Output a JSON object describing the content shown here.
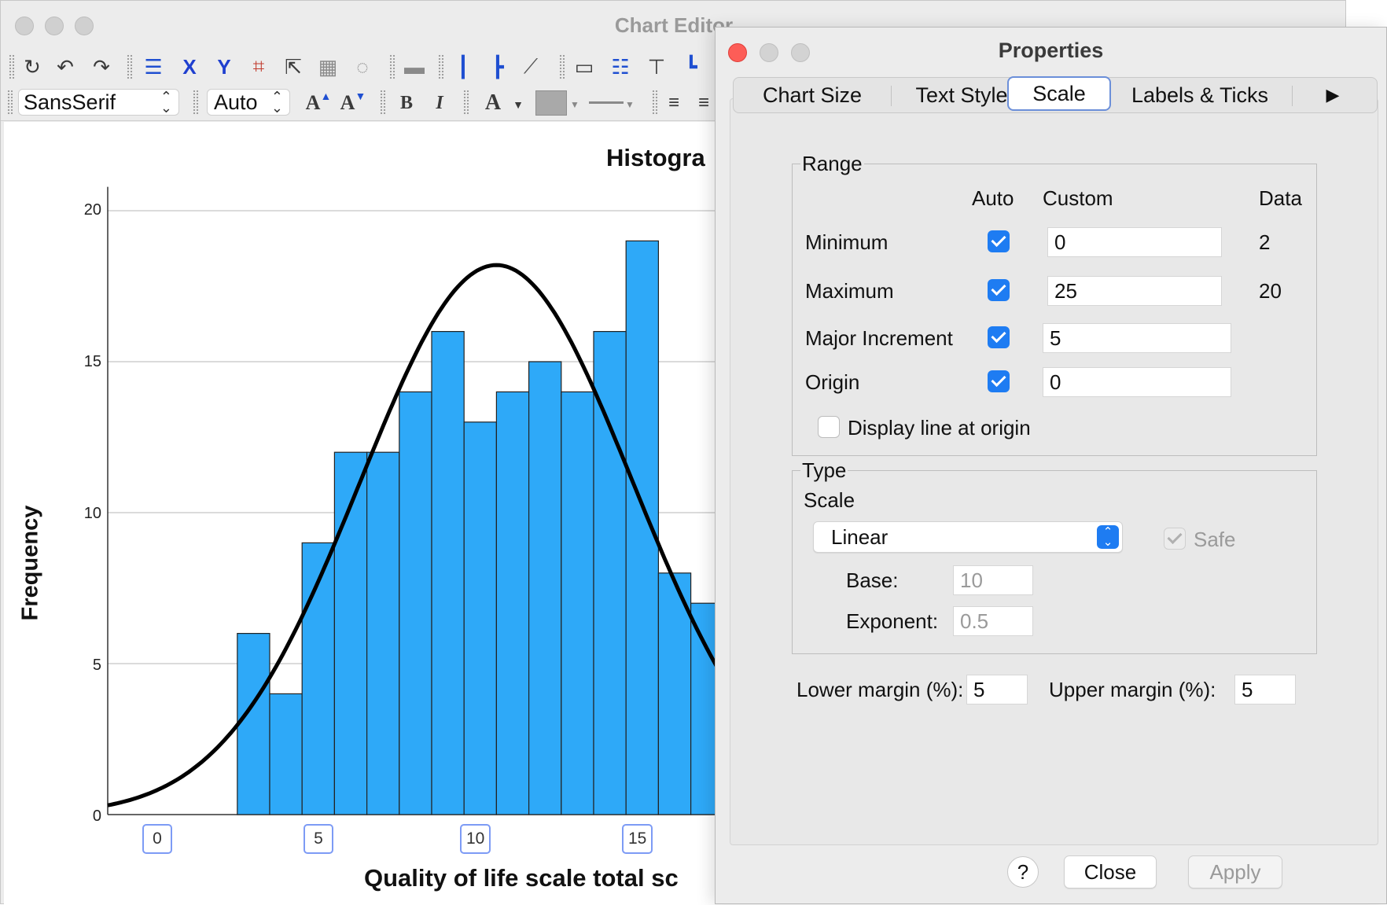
{
  "editor": {
    "title": "Chart Editor",
    "font_family": "SansSerif",
    "font_size": "Auto",
    "icons": [
      "undo-icon",
      "undo-arrow-icon",
      "redo-icon",
      "properties-icon",
      "x-axis-icon",
      "y-axis-icon",
      "data-label-icon",
      "scale-icon",
      "3d-icon",
      "lasso-icon",
      "chart-icon",
      "x-axis-lines-icon",
      "y-axis-lines-icon",
      "diagonal-line-icon",
      "frame-icon",
      "legend-icon",
      "title-icon",
      "footnote-icon"
    ],
    "format_buttons": {
      "grow": "A",
      "shrink": "A",
      "bold": "B",
      "italic": "I",
      "text_color": "A"
    }
  },
  "chart_data": {
    "type": "bar",
    "title": "Histogra",
    "xlabel": "Quality of life scale total sc",
    "ylabel": "Frequency",
    "y_ticks": [
      "0",
      "5",
      "10",
      "15",
      "20"
    ],
    "x_ticks": [
      "0",
      "5",
      "10",
      "15"
    ],
    "ylim": [
      0,
      21
    ],
    "x_tick_values": [
      0,
      5,
      10,
      15
    ],
    "bin_edges": [
      4,
      5,
      6,
      7,
      8,
      9,
      10,
      11,
      12,
      13,
      14,
      15,
      16,
      17,
      18,
      19
    ],
    "values": [
      6,
      4,
      9,
      12,
      12,
      14,
      16,
      13,
      14,
      15,
      14,
      16,
      19,
      8,
      7
    ],
    "bar_color": "#2ea9f8",
    "normal_curve": {
      "mean": 12.0,
      "sd": 4.2,
      "peak": 18.2
    }
  },
  "properties": {
    "title": "Properties",
    "tabs": [
      "Chart Size",
      "Text Style",
      "Scale",
      "Labels & Ticks"
    ],
    "active_tab": "Scale",
    "more_tabs_icon": "▶",
    "range": {
      "label": "Range",
      "col_auto": "Auto",
      "col_custom": "Custom",
      "col_data": "Data",
      "rows": [
        {
          "label": "Minimum",
          "auto": true,
          "custom": "0",
          "data": "2"
        },
        {
          "label": "Maximum",
          "auto": true,
          "custom": "25",
          "data": "20"
        },
        {
          "label": "Major Increment",
          "auto": true,
          "custom": "5",
          "data": ""
        },
        {
          "label": "Origin",
          "auto": true,
          "custom": "0",
          "data": ""
        }
      ],
      "display_line_label": "Display line at origin",
      "display_line_checked": false
    },
    "type": {
      "label": "Type",
      "scale_label": "Scale",
      "scale_value": "Linear",
      "safe_label": "Safe",
      "safe_checked": true,
      "base_label": "Base:",
      "base_value": "10",
      "exponent_label": "Exponent:",
      "exponent_value": "0.5"
    },
    "margins": {
      "lower_label": "Lower margin (%):",
      "lower_value": "5",
      "upper_label": "Upper margin (%):",
      "upper_value": "5"
    },
    "buttons": {
      "help": "?",
      "close": "Close",
      "apply": "Apply"
    }
  }
}
